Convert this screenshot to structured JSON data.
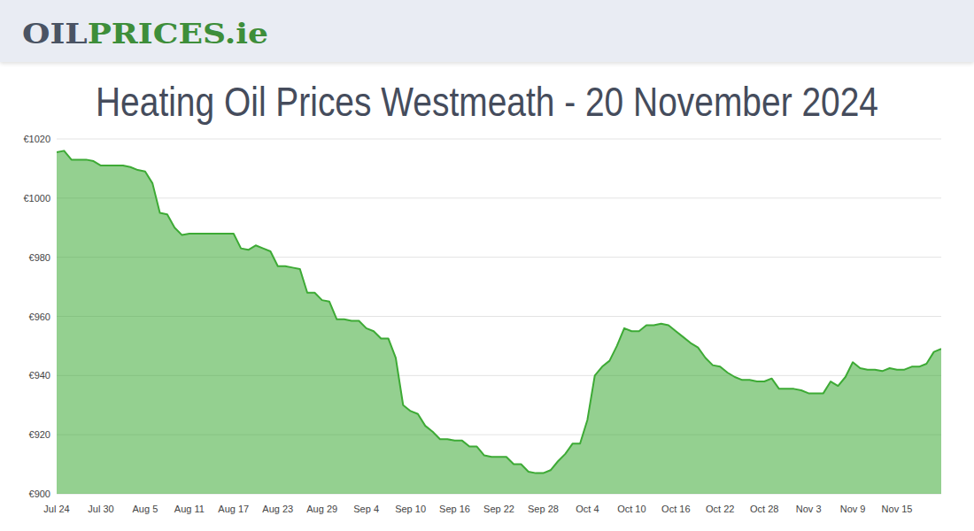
{
  "header": {
    "logo": [
      "OIL",
      "PRICES.ie"
    ]
  },
  "chart_data": {
    "type": "area",
    "title": "Heating Oil Prices Westmeath - 20 November 2024",
    "categories": [
      "Jul 24",
      null,
      null,
      null,
      null,
      null,
      "Jul 30",
      null,
      null,
      null,
      null,
      null,
      "Aug 5",
      null,
      null,
      null,
      null,
      null,
      "Aug 11",
      null,
      null,
      null,
      null,
      null,
      "Aug 17",
      null,
      null,
      null,
      null,
      null,
      "Aug 23",
      null,
      null,
      null,
      null,
      null,
      "Aug 29",
      null,
      null,
      null,
      null,
      null,
      "Sep 4",
      null,
      null,
      null,
      null,
      null,
      "Sep 10",
      null,
      null,
      null,
      null,
      null,
      "Sep 16",
      null,
      null,
      null,
      null,
      null,
      "Sep 22",
      null,
      null,
      null,
      null,
      null,
      "Sep 28",
      null,
      null,
      null,
      null,
      null,
      "Oct 4",
      null,
      null,
      null,
      null,
      null,
      "Oct 10",
      null,
      null,
      null,
      null,
      null,
      "Oct 16",
      null,
      null,
      null,
      null,
      null,
      "Oct 22",
      null,
      null,
      null,
      null,
      null,
      "Oct 28",
      null,
      null,
      null,
      null,
      null,
      "Nov 3",
      null,
      null,
      null,
      null,
      null,
      "Nov 9",
      null,
      null,
      null,
      null,
      null,
      "Nov 15",
      null,
      null,
      null,
      null,
      null,
      null
    ],
    "values": [
      1015.5,
      1016,
      1013,
      1013,
      1013,
      1012.5,
      1011,
      1011,
      1011,
      1011,
      1010.5,
      1009.5,
      1009,
      1005,
      995,
      994.5,
      990,
      987.5,
      988,
      988,
      988,
      988,
      988,
      988,
      988,
      983,
      982.5,
      984,
      983,
      982,
      977,
      977,
      976.5,
      976,
      968,
      968,
      965.5,
      965,
      959,
      959,
      958.5,
      958.5,
      956,
      955,
      952.5,
      952.5,
      946,
      930,
      928,
      927,
      923,
      921,
      918.5,
      918.5,
      918,
      918,
      916,
      916,
      913,
      912.5,
      912.5,
      912.5,
      910,
      910,
      907.5,
      907,
      907,
      908,
      911,
      913.5,
      917,
      917,
      925,
      940,
      943,
      945,
      950,
      956,
      955,
      955,
      957,
      957,
      957.5,
      957,
      955,
      953,
      951,
      949.5,
      946,
      943.5,
      943,
      941,
      939.5,
      938.5,
      938.5,
      938,
      938,
      939,
      935.5,
      935.5,
      935.5,
      935,
      934,
      934,
      934,
      938,
      936.5,
      939.5,
      944.5,
      942.5,
      942,
      942,
      941.5,
      942.5,
      942,
      942,
      943,
      943,
      944,
      948,
      949
    ],
    "color": "#3daa35",
    "ylim": [
      900,
      1020
    ],
    "yticks": [
      {
        "value": 900,
        "label": "€900"
      },
      {
        "value": 920,
        "label": "€920"
      },
      {
        "value": 940,
        "label": "€940"
      },
      {
        "value": 960,
        "label": "€960"
      },
      {
        "value": 980,
        "label": "€980"
      },
      {
        "value": 1000,
        "label": "€1000"
      },
      {
        "value": 1020,
        "label": "€1020"
      }
    ],
    "grid": true
  }
}
